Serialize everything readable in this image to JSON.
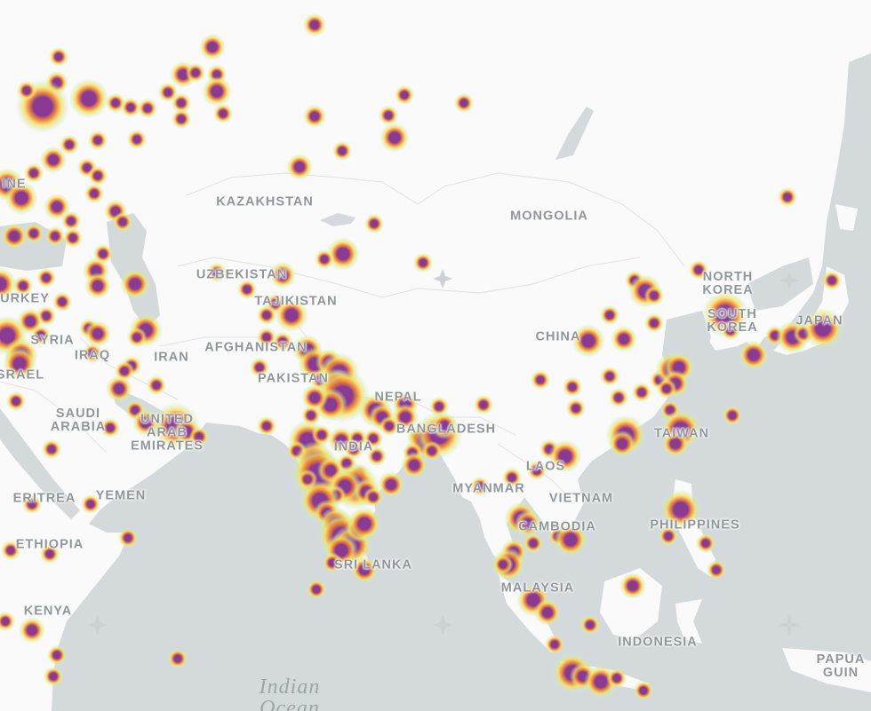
{
  "map": {
    "style": "light basemap with heatmap overlay",
    "colors": {
      "water": "#d4dadc",
      "land": "#fafafa",
      "border": "#e2e2e2",
      "label": "#8f969a",
      "heat_low": "#b9f2dc",
      "heat_mid": "#f6e05a",
      "heat_high": "#ef7d2c",
      "heat_core": "#8a3a93"
    }
  },
  "country_labels": [
    {
      "id": "kazakhstan",
      "text": "KAZAKHSTAN"
    },
    {
      "id": "mongolia",
      "text": "MONGOLIA"
    },
    {
      "id": "uzbekistan",
      "text": "UZBEKISTAN"
    },
    {
      "id": "tajikistan",
      "text": "TAJIKISTAN"
    },
    {
      "id": "turkey",
      "text": "URKEY"
    },
    {
      "id": "ukraine",
      "text": "INE"
    },
    {
      "id": "north-korea",
      "text": "NORTH\nKOREA"
    },
    {
      "id": "south-korea",
      "text": "SOUTH\nKOREA"
    },
    {
      "id": "japan",
      "text": "JAPAN"
    },
    {
      "id": "syria",
      "text": "SYRIA"
    },
    {
      "id": "iraq",
      "text": "IRAQ"
    },
    {
      "id": "iran",
      "text": "IRAN"
    },
    {
      "id": "afghanistan",
      "text": "AFGHANISTAN"
    },
    {
      "id": "pakistan",
      "text": "PAKISTAN"
    },
    {
      "id": "china",
      "text": "CHINA"
    },
    {
      "id": "israel",
      "text": "SRAEL"
    },
    {
      "id": "nepal",
      "text": "NEPAL"
    },
    {
      "id": "saudi-arabia",
      "text": "SAUDI\nARABIA"
    },
    {
      "id": "uae",
      "text": "UNITED\nARAB\nEMIRATES"
    },
    {
      "id": "bangladesh",
      "text": "BANGLADESH"
    },
    {
      "id": "india",
      "text": "INDIA"
    },
    {
      "id": "taiwan",
      "text": "TAIWAN"
    },
    {
      "id": "laos",
      "text": "LAOS"
    },
    {
      "id": "myanmar",
      "text": "MYANMAR"
    },
    {
      "id": "vietnam",
      "text": "VIETNAM"
    },
    {
      "id": "eritrea",
      "text": "ERITREA"
    },
    {
      "id": "yemen",
      "text": "YEMEN"
    },
    {
      "id": "cambodia",
      "text": "CAMBODIA"
    },
    {
      "id": "philippines",
      "text": "PHILIPPINES"
    },
    {
      "id": "ethiopia",
      "text": "ETHIOPIA"
    },
    {
      "id": "sri-lanka",
      "text": "SRI LANKA"
    },
    {
      "id": "malaysia",
      "text": "MALAYSIA"
    },
    {
      "id": "kenya",
      "text": "KENYA"
    },
    {
      "id": "indonesia",
      "text": "INDONESIA"
    },
    {
      "id": "papua-guinea",
      "text": "PAPUA\nGUIN"
    }
  ],
  "sea_labels": [
    {
      "id": "indian-ocean",
      "text": "Indian\nOcean"
    }
  ],
  "heatmap": {
    "intensity_levels": [
      "low",
      "medium",
      "high"
    ],
    "hotspot_count": 190
  }
}
